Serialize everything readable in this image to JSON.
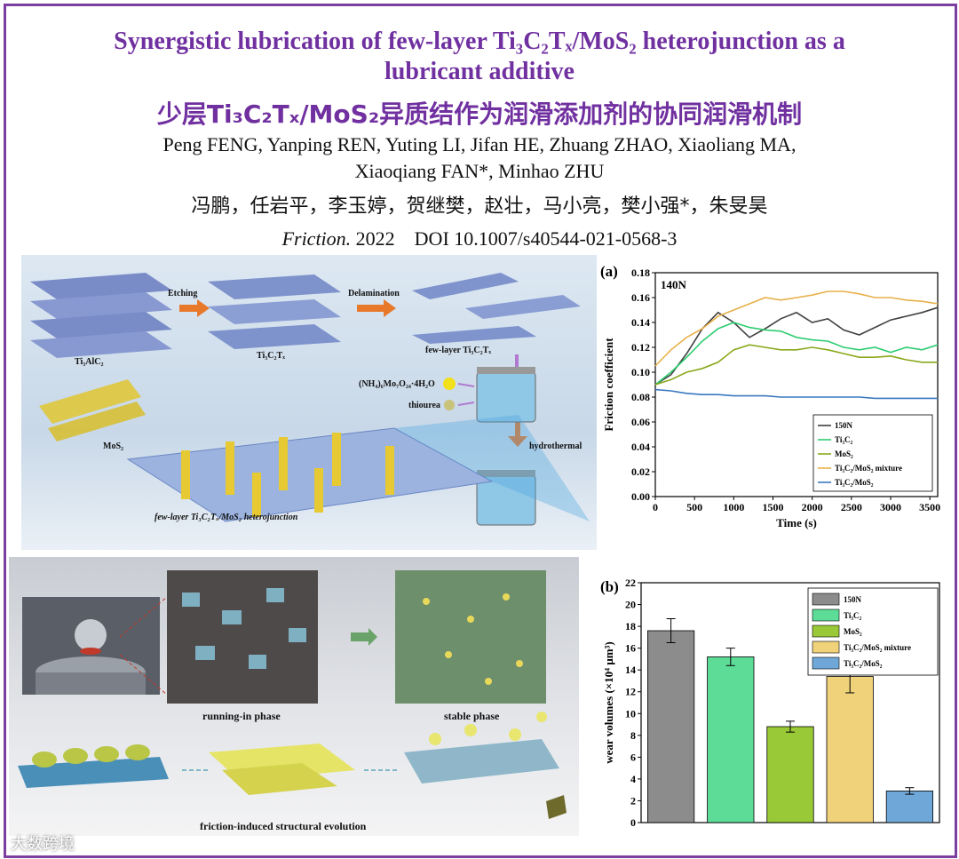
{
  "header": {
    "title_en_line1": "Synergistic lubrication of few-layer Ti₃C₂Tₓ/MoS₂ heterojunction as a",
    "title_en_line2": "lubricant additive",
    "title_cn": "少层Ti₃C₂Tₓ/MoS₂异质结作为润滑添加剂的协同润滑机制",
    "authors_en_line1": "Peng FENG, Yanping REN, Yuting LI, Jifan HE, Zhuang ZHAO, Xiaoliang MA,",
    "authors_en_line2": "Xiaoqiang FAN*, Minhao ZHU",
    "authors_cn": "冯鹏，任岩平，李玉婷，贺继樊，赵壮，马小亮，樊小强*，朱旻昊",
    "journal_name": "Friction.",
    "journal_year": "2022",
    "doi": "DOI 10.1007/s40544-021-0568-3"
  },
  "schematic_top": {
    "labels": {
      "ti3alc2": "Ti₃AlC₂",
      "etching": "Etching",
      "ti3c2tx": "Ti₃C₂Tₓ",
      "delamination": "Delamination",
      "few_layer": "few-layer Ti₃C₂Tₓ",
      "precursor": "(NH₄)₆Mo₇O₂₄·4H₂O",
      "thiourea": "thiourea",
      "hydrothermal": "hydrothermal",
      "mos2": "MoS₂",
      "heterojunction": "few-layer Ti₃C₂Tₓ/MoS₂ heterojunction"
    }
  },
  "schematic_bottom": {
    "labels": {
      "running_in": "running-in phase",
      "stable": "stable phase",
      "evolution": "friction-induced structural evolution"
    }
  },
  "watermark": "大数跨境",
  "chart_data": [
    {
      "panel": "(a)",
      "type": "line",
      "annotation": "140N",
      "xlabel": "Time (s)",
      "ylabel": "Friction coefficient",
      "xlim": [
        0,
        3600
      ],
      "ylim": [
        0,
        0.18
      ],
      "xticks": [
        0,
        500,
        1000,
        1500,
        2000,
        2500,
        3000,
        3500
      ],
      "yticks": [
        0.0,
        0.02,
        0.04,
        0.06,
        0.08,
        0.1,
        0.12,
        0.14,
        0.16,
        0.18
      ],
      "legend_position": "bottom-right",
      "x": [
        0,
        200,
        400,
        600,
        800,
        1000,
        1200,
        1400,
        1600,
        1800,
        2000,
        2200,
        2400,
        2600,
        2800,
        3000,
        3200,
        3400,
        3600
      ],
      "series": [
        {
          "name": "150N",
          "color": "#404040",
          "values": [
            0.09,
            0.098,
            0.115,
            0.135,
            0.148,
            0.14,
            0.128,
            0.135,
            0.143,
            0.148,
            0.14,
            0.143,
            0.134,
            0.13,
            0.136,
            0.142,
            0.145,
            0.148,
            0.152
          ]
        },
        {
          "name": "Ti₃C₂",
          "color": "#2ecc71",
          "values": [
            0.09,
            0.1,
            0.112,
            0.125,
            0.135,
            0.14,
            0.136,
            0.134,
            0.133,
            0.128,
            0.126,
            0.125,
            0.12,
            0.118,
            0.12,
            0.116,
            0.12,
            0.118,
            0.122
          ]
        },
        {
          "name": "MoS₂",
          "color": "#8aa81a",
          "values": [
            0.09,
            0.094,
            0.1,
            0.103,
            0.108,
            0.118,
            0.122,
            0.12,
            0.118,
            0.118,
            0.12,
            0.118,
            0.115,
            0.112,
            0.112,
            0.113,
            0.11,
            0.108,
            0.108
          ]
        },
        {
          "name": "Ti₃C₂/MoS₂ mixture",
          "color": "#e8b04a",
          "values": [
            0.105,
            0.118,
            0.128,
            0.135,
            0.145,
            0.15,
            0.155,
            0.16,
            0.158,
            0.16,
            0.162,
            0.165,
            0.165,
            0.163,
            0.16,
            0.16,
            0.158,
            0.157,
            0.155
          ]
        },
        {
          "name": "Ti₃C₂/MoS₂",
          "color": "#3a78c0",
          "values": [
            0.086,
            0.085,
            0.083,
            0.082,
            0.082,
            0.081,
            0.081,
            0.081,
            0.08,
            0.08,
            0.08,
            0.08,
            0.08,
            0.08,
            0.079,
            0.079,
            0.079,
            0.079,
            0.079
          ]
        }
      ]
    },
    {
      "panel": "(b)",
      "type": "bar",
      "ylabel": "wear volumes (×10⁴ μm³)",
      "ylim": [
        0,
        22
      ],
      "yticks": [
        0,
        2,
        4,
        6,
        8,
        10,
        12,
        14,
        16,
        18,
        20,
        22
      ],
      "legend_position": "top-right",
      "categories": [
        "150N",
        "Ti₃C₂",
        "MoS₂",
        "Ti₃C₂/MoS₂ mixture",
        "Ti₃C₂/MoS₂"
      ],
      "values": [
        17.6,
        15.2,
        8.8,
        13.4,
        2.9
      ],
      "errors": [
        1.1,
        0.8,
        0.5,
        1.5,
        0.3
      ],
      "colors": [
        "#8c8c8c",
        "#5ddc98",
        "#99c936",
        "#f0d27a",
        "#6fa8d8"
      ]
    }
  ]
}
